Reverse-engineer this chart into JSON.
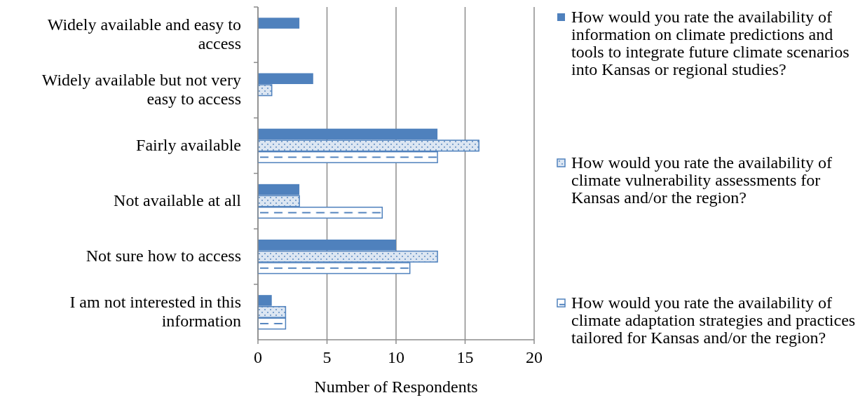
{
  "chart_data": {
    "type": "bar",
    "orientation": "horizontal",
    "xlabel": "Number of Respondents",
    "categories": [
      "Widely available and easy to access",
      "Widely available but not very easy to access",
      "Fairly available",
      "Not available at all",
      "Not sure how to access",
      "I am not interested in this information"
    ],
    "series": [
      {
        "name": "How would you rate the availability of information on climate predictions and tools to integrate future climate scenarios into Kansas or regional studies?",
        "color": "#4f81bd",
        "values": [
          3,
          4,
          13,
          3,
          10,
          1
        ]
      },
      {
        "name": "How would you rate the availability of climate vulnerability assessments for Kansas and/or the region?",
        "color": "#4f81bd",
        "values": [
          0,
          1,
          16,
          3,
          13,
          2
        ]
      },
      {
        "name": "How would you rate the availability of climate adaptation strategies and practices tailored for Kansas and/or the region?",
        "color": "#4f81bd",
        "values": [
          0,
          0,
          13,
          9,
          11,
          2
        ]
      }
    ],
    "xlim": [
      0,
      20
    ],
    "xticks": [
      0,
      5,
      10,
      15,
      20
    ],
    "grid": "x",
    "legend": "right"
  }
}
